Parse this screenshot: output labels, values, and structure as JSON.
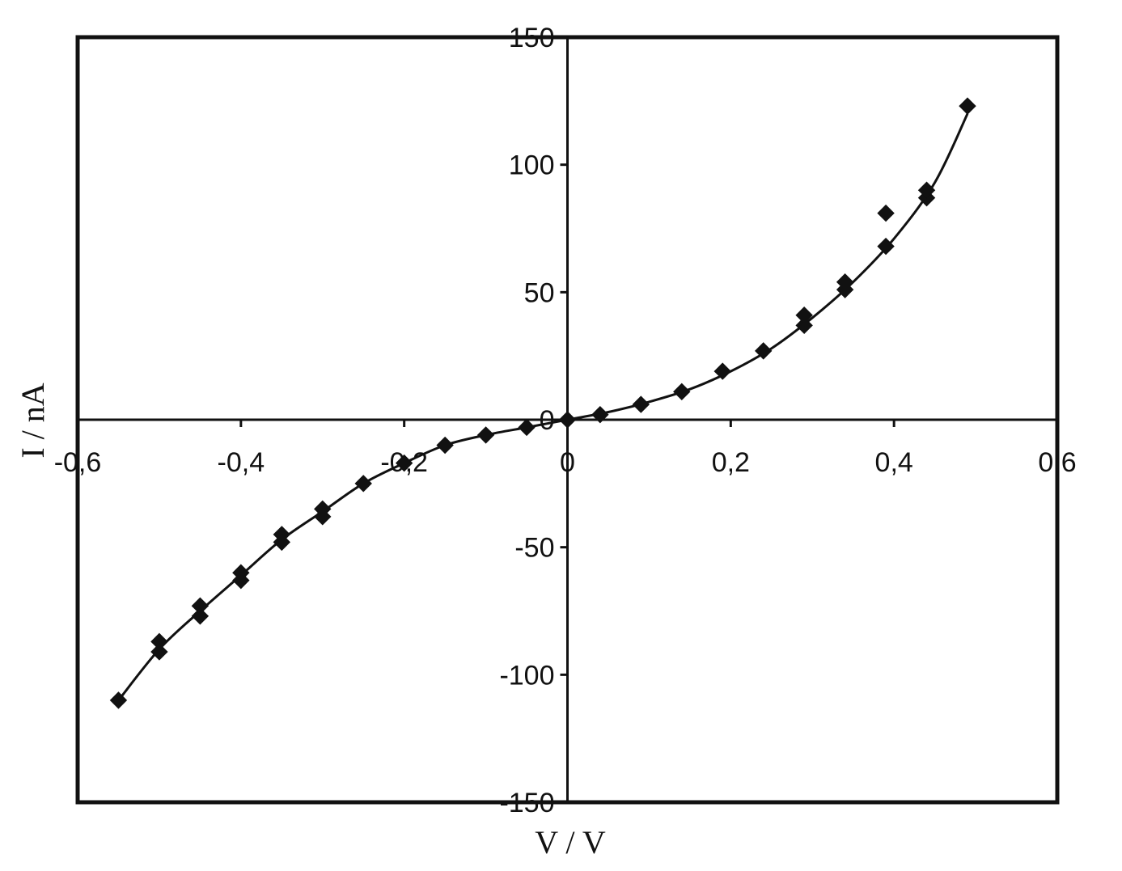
{
  "colors": {
    "background": "#ffffff",
    "ink": "#111111"
  },
  "chart_data": {
    "type": "scatter",
    "title": "",
    "xlabel": "V / V",
    "ylabel": "I / nA",
    "xlim": [
      -0.6,
      0.6
    ],
    "ylim": [
      -150,
      150
    ],
    "grid": false,
    "legend": "none",
    "marker": "diamond",
    "x_ticks": [
      {
        "value": -0.6,
        "label": "-0,6"
      },
      {
        "value": -0.4,
        "label": "-0,4"
      },
      {
        "value": -0.2,
        "label": "-0,2"
      },
      {
        "value": 0,
        "label": "0"
      },
      {
        "value": 0.2,
        "label": "0,2"
      },
      {
        "value": 0.4,
        "label": "0,4"
      },
      {
        "value": 0.6,
        "label": "0,6"
      }
    ],
    "y_ticks": [
      {
        "value": 150,
        "label": "150"
      },
      {
        "value": 100,
        "label": "100"
      },
      {
        "value": 50,
        "label": "50"
      },
      {
        "value": 0,
        "label": "0"
      },
      {
        "value": -50,
        "label": "-50"
      },
      {
        "value": -100,
        "label": "-100"
      },
      {
        "value": -150,
        "label": "-150"
      }
    ],
    "series": [
      {
        "type": "scatter",
        "points": [
          {
            "x": -0.55,
            "y": -110
          },
          {
            "x": -0.5,
            "y": -87
          },
          {
            "x": -0.5,
            "y": -91
          },
          {
            "x": -0.45,
            "y": -73
          },
          {
            "x": -0.45,
            "y": -77
          },
          {
            "x": -0.4,
            "y": -60
          },
          {
            "x": -0.4,
            "y": -63
          },
          {
            "x": -0.35,
            "y": -45
          },
          {
            "x": -0.35,
            "y": -48
          },
          {
            "x": -0.3,
            "y": -35
          },
          {
            "x": -0.3,
            "y": -38
          },
          {
            "x": -0.25,
            "y": -25
          },
          {
            "x": -0.2,
            "y": -17
          },
          {
            "x": -0.15,
            "y": -10
          },
          {
            "x": -0.1,
            "y": -6
          },
          {
            "x": -0.05,
            "y": -3
          },
          {
            "x": 0.0,
            "y": 0
          },
          {
            "x": 0.04,
            "y": 2
          },
          {
            "x": 0.09,
            "y": 6
          },
          {
            "x": 0.14,
            "y": 11
          },
          {
            "x": 0.19,
            "y": 19
          },
          {
            "x": 0.24,
            "y": 27
          },
          {
            "x": 0.29,
            "y": 37
          },
          {
            "x": 0.29,
            "y": 41
          },
          {
            "x": 0.34,
            "y": 51
          },
          {
            "x": 0.34,
            "y": 54
          },
          {
            "x": 0.39,
            "y": 68
          },
          {
            "x": 0.39,
            "y": 81
          },
          {
            "x": 0.44,
            "y": 87
          },
          {
            "x": 0.44,
            "y": 90
          },
          {
            "x": 0.49,
            "y": 123
          }
        ]
      },
      {
        "type": "line",
        "points": [
          {
            "x": -0.55,
            "y": -110
          },
          {
            "x": -0.5,
            "y": -90
          },
          {
            "x": -0.45,
            "y": -75
          },
          {
            "x": -0.4,
            "y": -61
          },
          {
            "x": -0.35,
            "y": -47
          },
          {
            "x": -0.3,
            "y": -36
          },
          {
            "x": -0.25,
            "y": -25
          },
          {
            "x": -0.2,
            "y": -17
          },
          {
            "x": -0.15,
            "y": -10
          },
          {
            "x": -0.1,
            "y": -6
          },
          {
            "x": -0.05,
            "y": -3
          },
          {
            "x": 0.0,
            "y": 0
          },
          {
            "x": 0.05,
            "y": 3
          },
          {
            "x": 0.1,
            "y": 7
          },
          {
            "x": 0.15,
            "y": 12
          },
          {
            "x": 0.2,
            "y": 19
          },
          {
            "x": 0.25,
            "y": 28
          },
          {
            "x": 0.3,
            "y": 40
          },
          {
            "x": 0.35,
            "y": 54
          },
          {
            "x": 0.4,
            "y": 71
          },
          {
            "x": 0.45,
            "y": 93
          },
          {
            "x": 0.49,
            "y": 120
          }
        ]
      }
    ]
  }
}
